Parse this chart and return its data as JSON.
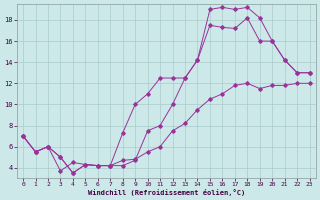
{
  "xlabel": "Windchill (Refroidissement éolien,°C)",
  "background_color": "#cce8e8",
  "grid_color": "#aacccc",
  "line_color": "#993399",
  "xlim": [
    -0.5,
    23.5
  ],
  "ylim": [
    3.0,
    19.5
  ],
  "yticks": [
    4,
    6,
    8,
    10,
    12,
    14,
    16,
    18
  ],
  "xticks": [
    0,
    1,
    2,
    3,
    4,
    5,
    6,
    7,
    8,
    9,
    10,
    11,
    12,
    13,
    14,
    15,
    16,
    17,
    18,
    19,
    20,
    21,
    22,
    23
  ],
  "line1_x": [
    0,
    1,
    2,
    3,
    4,
    5,
    6,
    7,
    8,
    9,
    10,
    11,
    12,
    13,
    14,
    15,
    16,
    17,
    18,
    19,
    20,
    21,
    22,
    23
  ],
  "line1_y": [
    7.0,
    5.5,
    6.0,
    3.7,
    4.5,
    4.3,
    4.2,
    4.2,
    4.7,
    4.8,
    5.5,
    6.0,
    7.5,
    8.2,
    9.5,
    10.5,
    11.0,
    11.8,
    12.0,
    11.5,
    11.8,
    11.8,
    12.0,
    12.0
  ],
  "line2_x": [
    0,
    1,
    2,
    3,
    4,
    5,
    6,
    7,
    8,
    9,
    10,
    11,
    12,
    13,
    14,
    15,
    16,
    17,
    18,
    19,
    20,
    21,
    22,
    23
  ],
  "line2_y": [
    7.0,
    5.5,
    6.0,
    5.0,
    3.5,
    4.3,
    4.2,
    4.2,
    7.3,
    10.0,
    11.0,
    12.5,
    12.5,
    12.5,
    14.2,
    17.5,
    17.3,
    17.2,
    18.2,
    16.0,
    16.0,
    14.2,
    13.0,
    13.0
  ],
  "line3_x": [
    0,
    1,
    2,
    3,
    4,
    5,
    6,
    7,
    8,
    9,
    10,
    11,
    12,
    13,
    14,
    15,
    16,
    17,
    18,
    19,
    20,
    21,
    22,
    23
  ],
  "line3_y": [
    7.0,
    5.5,
    6.0,
    5.0,
    3.5,
    4.3,
    4.2,
    4.2,
    4.2,
    4.7,
    7.5,
    8.0,
    10.0,
    12.5,
    14.2,
    19.0,
    19.2,
    19.0,
    19.2,
    18.2,
    16.0,
    14.2,
    13.0,
    13.0
  ]
}
